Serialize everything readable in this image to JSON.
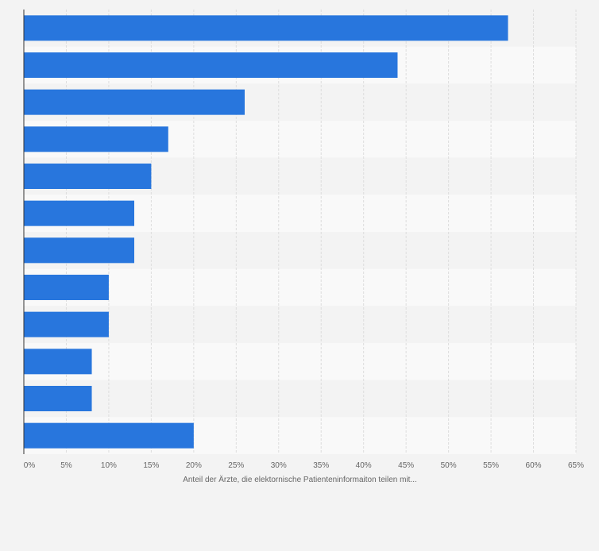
{
  "chart_data": {
    "type": "bar",
    "orientation": "horizontal",
    "categories": [
      "",
      "",
      "",
      "",
      "",
      "",
      "",
      "",
      "",
      "",
      "",
      ""
    ],
    "values": [
      57,
      44,
      26,
      17,
      15,
      13,
      13,
      10,
      10,
      8,
      8,
      20
    ],
    "x_ticks": [
      "0%",
      "5%",
      "10%",
      "15%",
      "20%",
      "25%",
      "30%",
      "35%",
      "40%",
      "45%",
      "50%",
      "55%",
      "60%",
      "65%"
    ],
    "xlim": [
      0,
      65
    ],
    "xlabel": "Anteil der Ärzte, die elektornische Patienteninformaiton teilen mit...",
    "ylabel": "",
    "grid": true,
    "bar_color": "#2876dd",
    "band_colors": [
      "#f3f3f3",
      "#f9f9f9"
    ],
    "gridline_color": "#dddddd",
    "axis_color": "#333333",
    "tick_label_color": "#666666"
  }
}
